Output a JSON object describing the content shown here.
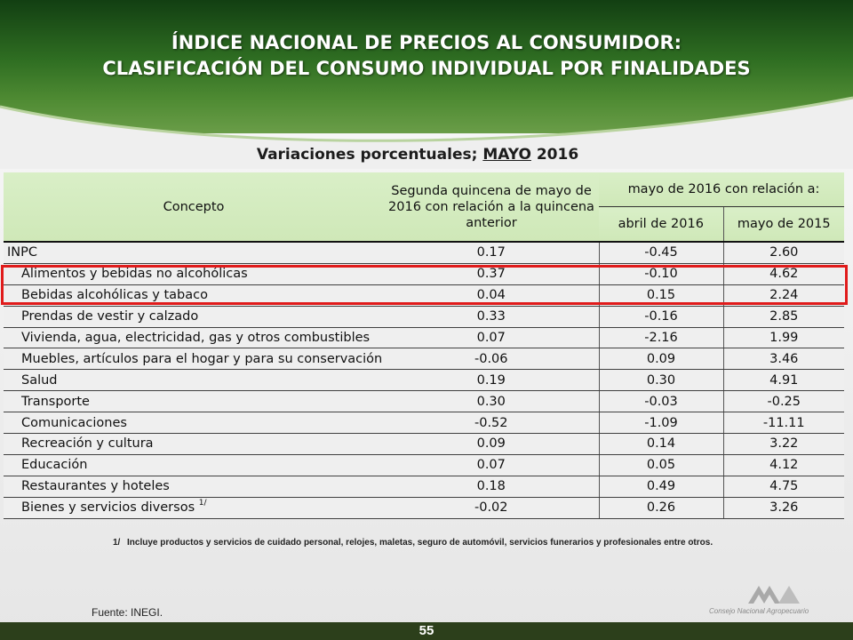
{
  "header": {
    "title_line1": "ÍNDICE NACIONAL DE PRECIOS AL CONSUMIDOR:",
    "title_line2": "CLASIFICACIÓN DEL CONSUMO INDIVIDUAL POR FINALIDADES"
  },
  "subtitle": {
    "prefix": "Variaciones porcentuales; ",
    "month": "MAYO",
    "year": " 2016"
  },
  "table": {
    "header": {
      "concepto": "Concepto",
      "segunda": "Segunda quincena de mayo de 2016 con relación a la quincena anterior",
      "relacion": "mayo de 2016 con relación a:",
      "abril": "abril de 2016",
      "mayo2015": "mayo de 2015"
    },
    "rows": [
      {
        "concepto": "INPC",
        "quincena": "0.17",
        "abril": "-0.45",
        "mayo2015": "2.60"
      },
      {
        "concepto": "Alimentos y bebidas no alcohólicas",
        "quincena": "0.37",
        "abril": "-0.10",
        "mayo2015": "4.62"
      },
      {
        "concepto": "Bebidas alcohólicas y tabaco",
        "quincena": "0.04",
        "abril": "0.15",
        "mayo2015": "2.24"
      },
      {
        "concepto": "Prendas de vestir y calzado",
        "quincena": "0.33",
        "abril": "-0.16",
        "mayo2015": "2.85"
      },
      {
        "concepto": "Vivienda, agua, electricidad, gas y otros combustibles",
        "quincena": "0.07",
        "abril": "-2.16",
        "mayo2015": "1.99"
      },
      {
        "concepto": "Muebles, artículos para el hogar y para su conservación",
        "quincena": "-0.06",
        "abril": "0.09",
        "mayo2015": "3.46"
      },
      {
        "concepto": "Salud",
        "quincena": "0.19",
        "abril": "0.30",
        "mayo2015": "4.91"
      },
      {
        "concepto": "Transporte",
        "quincena": "0.30",
        "abril": "-0.03",
        "mayo2015": "-0.25"
      },
      {
        "concepto": "Comunicaciones",
        "quincena": "-0.52",
        "abril": "-1.09",
        "mayo2015": "-11.11"
      },
      {
        "concepto": "Recreación y cultura",
        "quincena": "0.09",
        "abril": "0.14",
        "mayo2015": "3.22"
      },
      {
        "concepto": "Educación",
        "quincena": "0.07",
        "abril": "0.05",
        "mayo2015": "4.12"
      },
      {
        "concepto": "Restaurantes y hoteles",
        "quincena": "0.18",
        "abril": "0.49",
        "mayo2015": "4.75"
      },
      {
        "concepto": "Bienes y servicios diversos",
        "quincena": "-0.02",
        "abril": "0.26",
        "mayo2015": "3.26",
        "note": "1/"
      }
    ]
  },
  "footnote": {
    "mark": "1/",
    "text": "Incluye productos y servicios de cuidado personal, relojes, maletas, seguro de automóvil, servicios funerarios y profesionales entre otros."
  },
  "source": "Fuente: INEGI.",
  "page_number": "55",
  "logo": {
    "icon": "cna-mountains-logo-icon",
    "text": "Consejo Nacional Agropecuario"
  },
  "colors": {
    "header_green": "#2f6e22",
    "table_header": "#d9efc7",
    "highlight": "#e01b1b"
  }
}
